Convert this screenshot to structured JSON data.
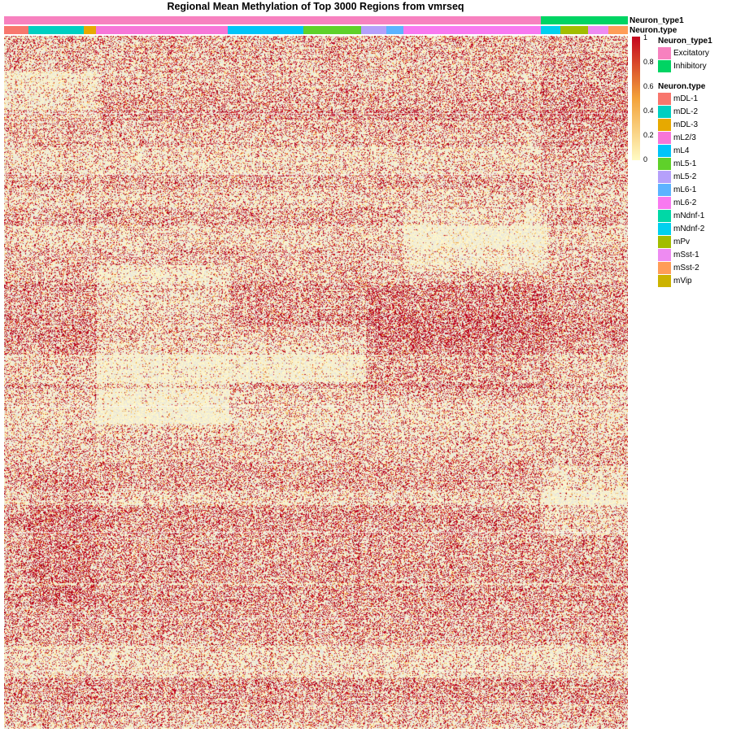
{
  "title": "Regional Mean Methylation of Top 3000 Regions from vmrseq",
  "annotations": {
    "neuron_type1": {
      "label": "Neuron_type1",
      "legend_title": "Neuron_type1",
      "categories": [
        {
          "name": "Excitatory",
          "color": "#F781BF"
        },
        {
          "name": "Inhibitory",
          "color": "#00D463"
        }
      ],
      "sequence": [
        "Excitatory",
        "Inhibitory"
      ],
      "counts": [
        663,
        107
      ]
    },
    "neuron_type": {
      "label": "Neuron.type",
      "legend_title": "Neuron.type",
      "categories": [
        {
          "name": "mDL-1",
          "color": "#F8766D"
        },
        {
          "name": "mDL-2",
          "color": "#00CFC1"
        },
        {
          "name": "mDL-3",
          "color": "#E7A900"
        },
        {
          "name": "mL2/3",
          "color": "#F776D8"
        },
        {
          "name": "mL4",
          "color": "#00C4F8"
        },
        {
          "name": "mL5-1",
          "color": "#5FD12A"
        },
        {
          "name": "mL5-2",
          "color": "#B5A0FA"
        },
        {
          "name": "mL6-1",
          "color": "#5CB3FF"
        },
        {
          "name": "mL6-2",
          "color": "#F879F0"
        },
        {
          "name": "mNdnf-1",
          "color": "#00D8A6"
        },
        {
          "name": "mNdnf-2",
          "color": "#00D0EE"
        },
        {
          "name": "mPv",
          "color": "#A2BD00"
        },
        {
          "name": "mSst-1",
          "color": "#EE8BF2"
        },
        {
          "name": "mSst-2",
          "color": "#FF9D57"
        },
        {
          "name": "mVip",
          "color": "#CCB300"
        }
      ],
      "sequence": [
        "mDL-1",
        "mDL-2",
        "mDL-3",
        "mL2/3",
        "mL4",
        "mL5-1",
        "mL5-2",
        "mL6-1",
        "mL6-2",
        "mNdnf-1",
        "mNdnf-2",
        "mPv",
        "mSst-1",
        "mSst-2",
        "mVip"
      ],
      "counts": [
        30,
        68,
        15,
        163,
        93,
        72,
        31,
        21,
        170,
        0,
        24,
        34,
        25,
        24,
        0
      ]
    }
  },
  "colorbar": {
    "ticks": [
      "1",
      "0.8",
      "0.6",
      "0.4",
      "0.2",
      "0"
    ],
    "colors": [
      "#C4051E",
      "#F3A33A",
      "#FFFBC4"
    ],
    "na_color": "#E8E6DC"
  },
  "chart_data": {
    "type": "heatmap",
    "title": "Regional Mean Methylation of Top 3000 Regions from vmrseq",
    "value_range": [
      0,
      1
    ],
    "rows": 3000,
    "legend_placement": "right",
    "color_scale": [
      {
        "value": 0,
        "color": "#FFFBC4"
      },
      {
        "value": 0.5,
        "color": "#F3A33A"
      },
      {
        "value": 1,
        "color": "#C4051E"
      }
    ],
    "missing_color": "#E8E6DC"
  }
}
